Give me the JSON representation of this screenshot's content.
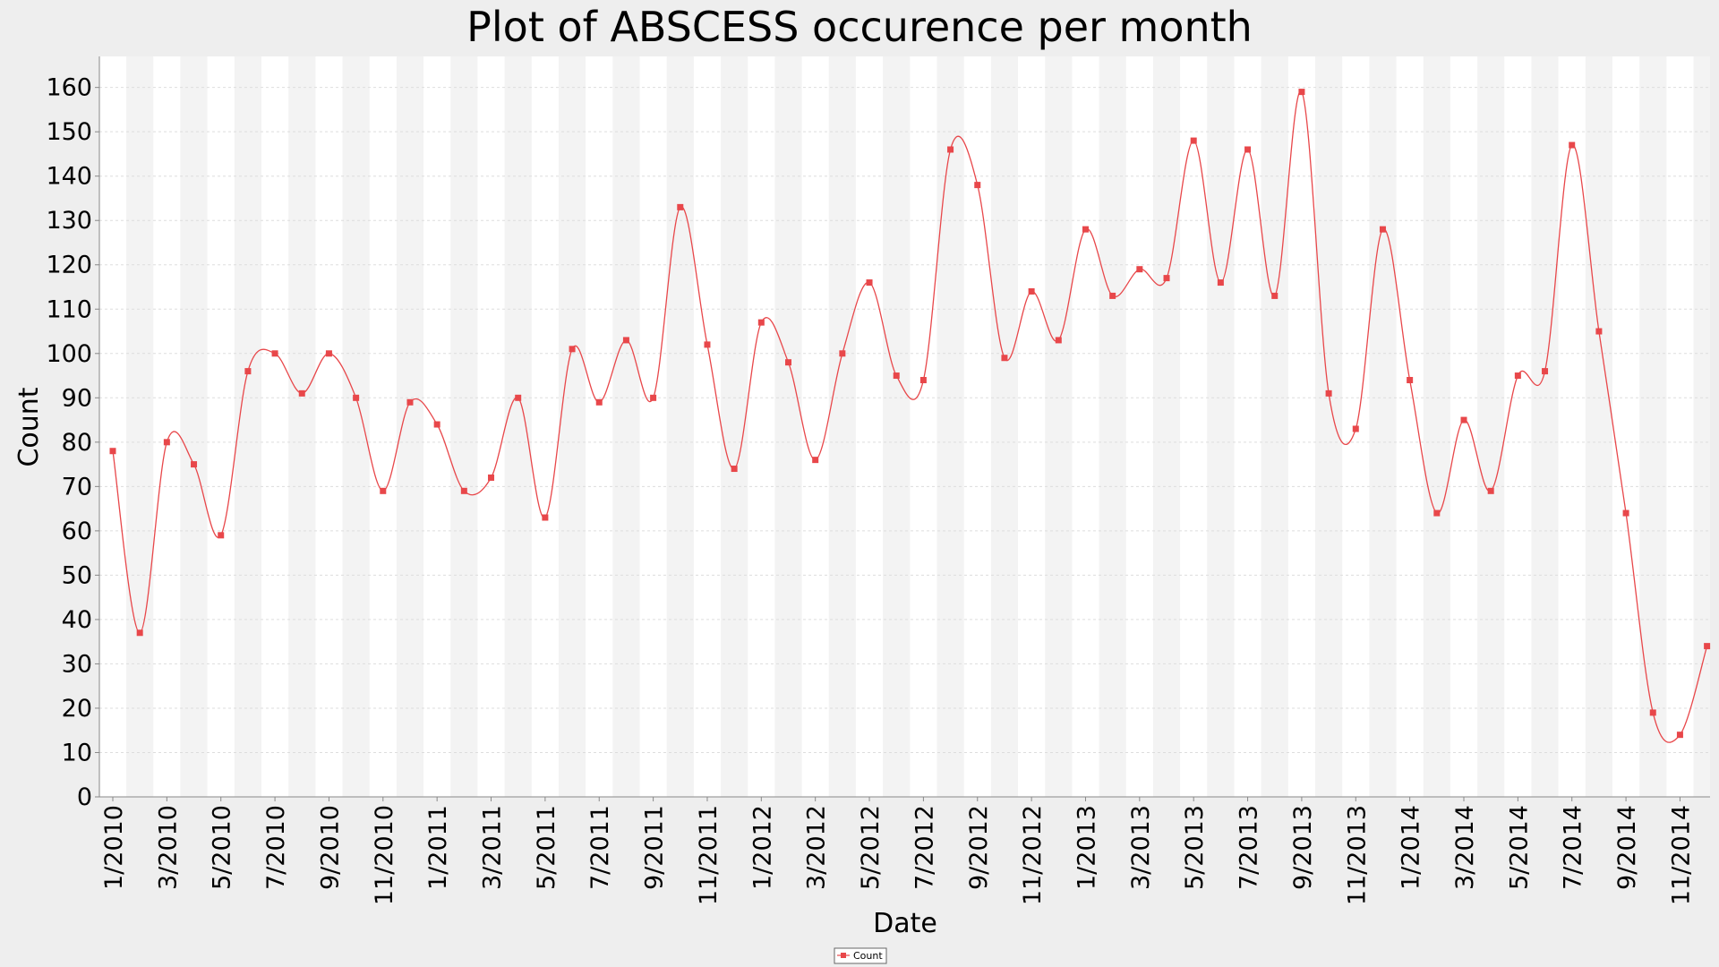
{
  "chart_data": {
    "type": "line",
    "title": "Plot of ABSCESS occurence per month",
    "xlabel": "Date",
    "ylabel": "Count",
    "ylim": [
      0,
      167
    ],
    "yticks": [
      0,
      10,
      20,
      30,
      40,
      50,
      60,
      70,
      80,
      90,
      100,
      110,
      120,
      130,
      140,
      150,
      160
    ],
    "x_tick_labels": [
      "1/2010",
      "3/2010",
      "5/2010",
      "7/2010",
      "9/2010",
      "11/2010",
      "1/2011",
      "3/2011",
      "5/2011",
      "7/2011",
      "9/2011",
      "11/2011",
      "1/2012",
      "3/2012",
      "5/2012",
      "7/2012",
      "9/2012",
      "11/2012",
      "1/2013",
      "3/2013",
      "5/2013",
      "7/2013",
      "9/2013",
      "11/2013",
      "1/2014",
      "3/2014",
      "5/2014",
      "7/2014",
      "9/2014",
      "11/2014"
    ],
    "series": [
      {
        "name": "Count",
        "color": "#e8474a",
        "x": [
          "1/2010",
          "2/2010",
          "3/2010",
          "4/2010",
          "5/2010",
          "6/2010",
          "7/2010",
          "8/2010",
          "9/2010",
          "10/2010",
          "11/2010",
          "12/2010",
          "1/2011",
          "2/2011",
          "3/2011",
          "4/2011",
          "5/2011",
          "6/2011",
          "7/2011",
          "8/2011",
          "9/2011",
          "10/2011",
          "11/2011",
          "12/2011",
          "1/2012",
          "2/2012",
          "3/2012",
          "4/2012",
          "5/2012",
          "6/2012",
          "7/2012",
          "8/2012",
          "9/2012",
          "10/2012",
          "11/2012",
          "12/2012",
          "1/2013",
          "2/2013",
          "3/2013",
          "4/2013",
          "5/2013",
          "6/2013",
          "7/2013",
          "8/2013",
          "9/2013",
          "10/2013",
          "11/2013",
          "12/2013",
          "1/2014",
          "2/2014",
          "3/2014",
          "4/2014",
          "5/2014",
          "6/2014",
          "7/2014",
          "8/2014",
          "9/2014",
          "10/2014",
          "11/2014",
          "12/2014"
        ],
        "values": [
          78,
          37,
          80,
          75,
          59,
          96,
          100,
          91,
          100,
          90,
          69,
          89,
          84,
          69,
          72,
          90,
          63,
          101,
          89,
          103,
          90,
          133,
          102,
          74,
          107,
          98,
          76,
          100,
          116,
          95,
          94,
          146,
          138,
          99,
          114,
          103,
          128,
          113,
          119,
          117,
          148,
          116,
          146,
          113,
          159,
          91,
          83,
          128,
          94,
          64,
          85,
          69,
          95,
          96,
          147,
          105,
          64,
          19,
          14,
          34
        ]
      }
    ],
    "grid": true,
    "legend_position": "bottom-center"
  },
  "colors": {
    "background": "#eeeeee",
    "plot_background": "#ffffff",
    "band": "#f3f3f3",
    "series": "#e8474a"
  }
}
